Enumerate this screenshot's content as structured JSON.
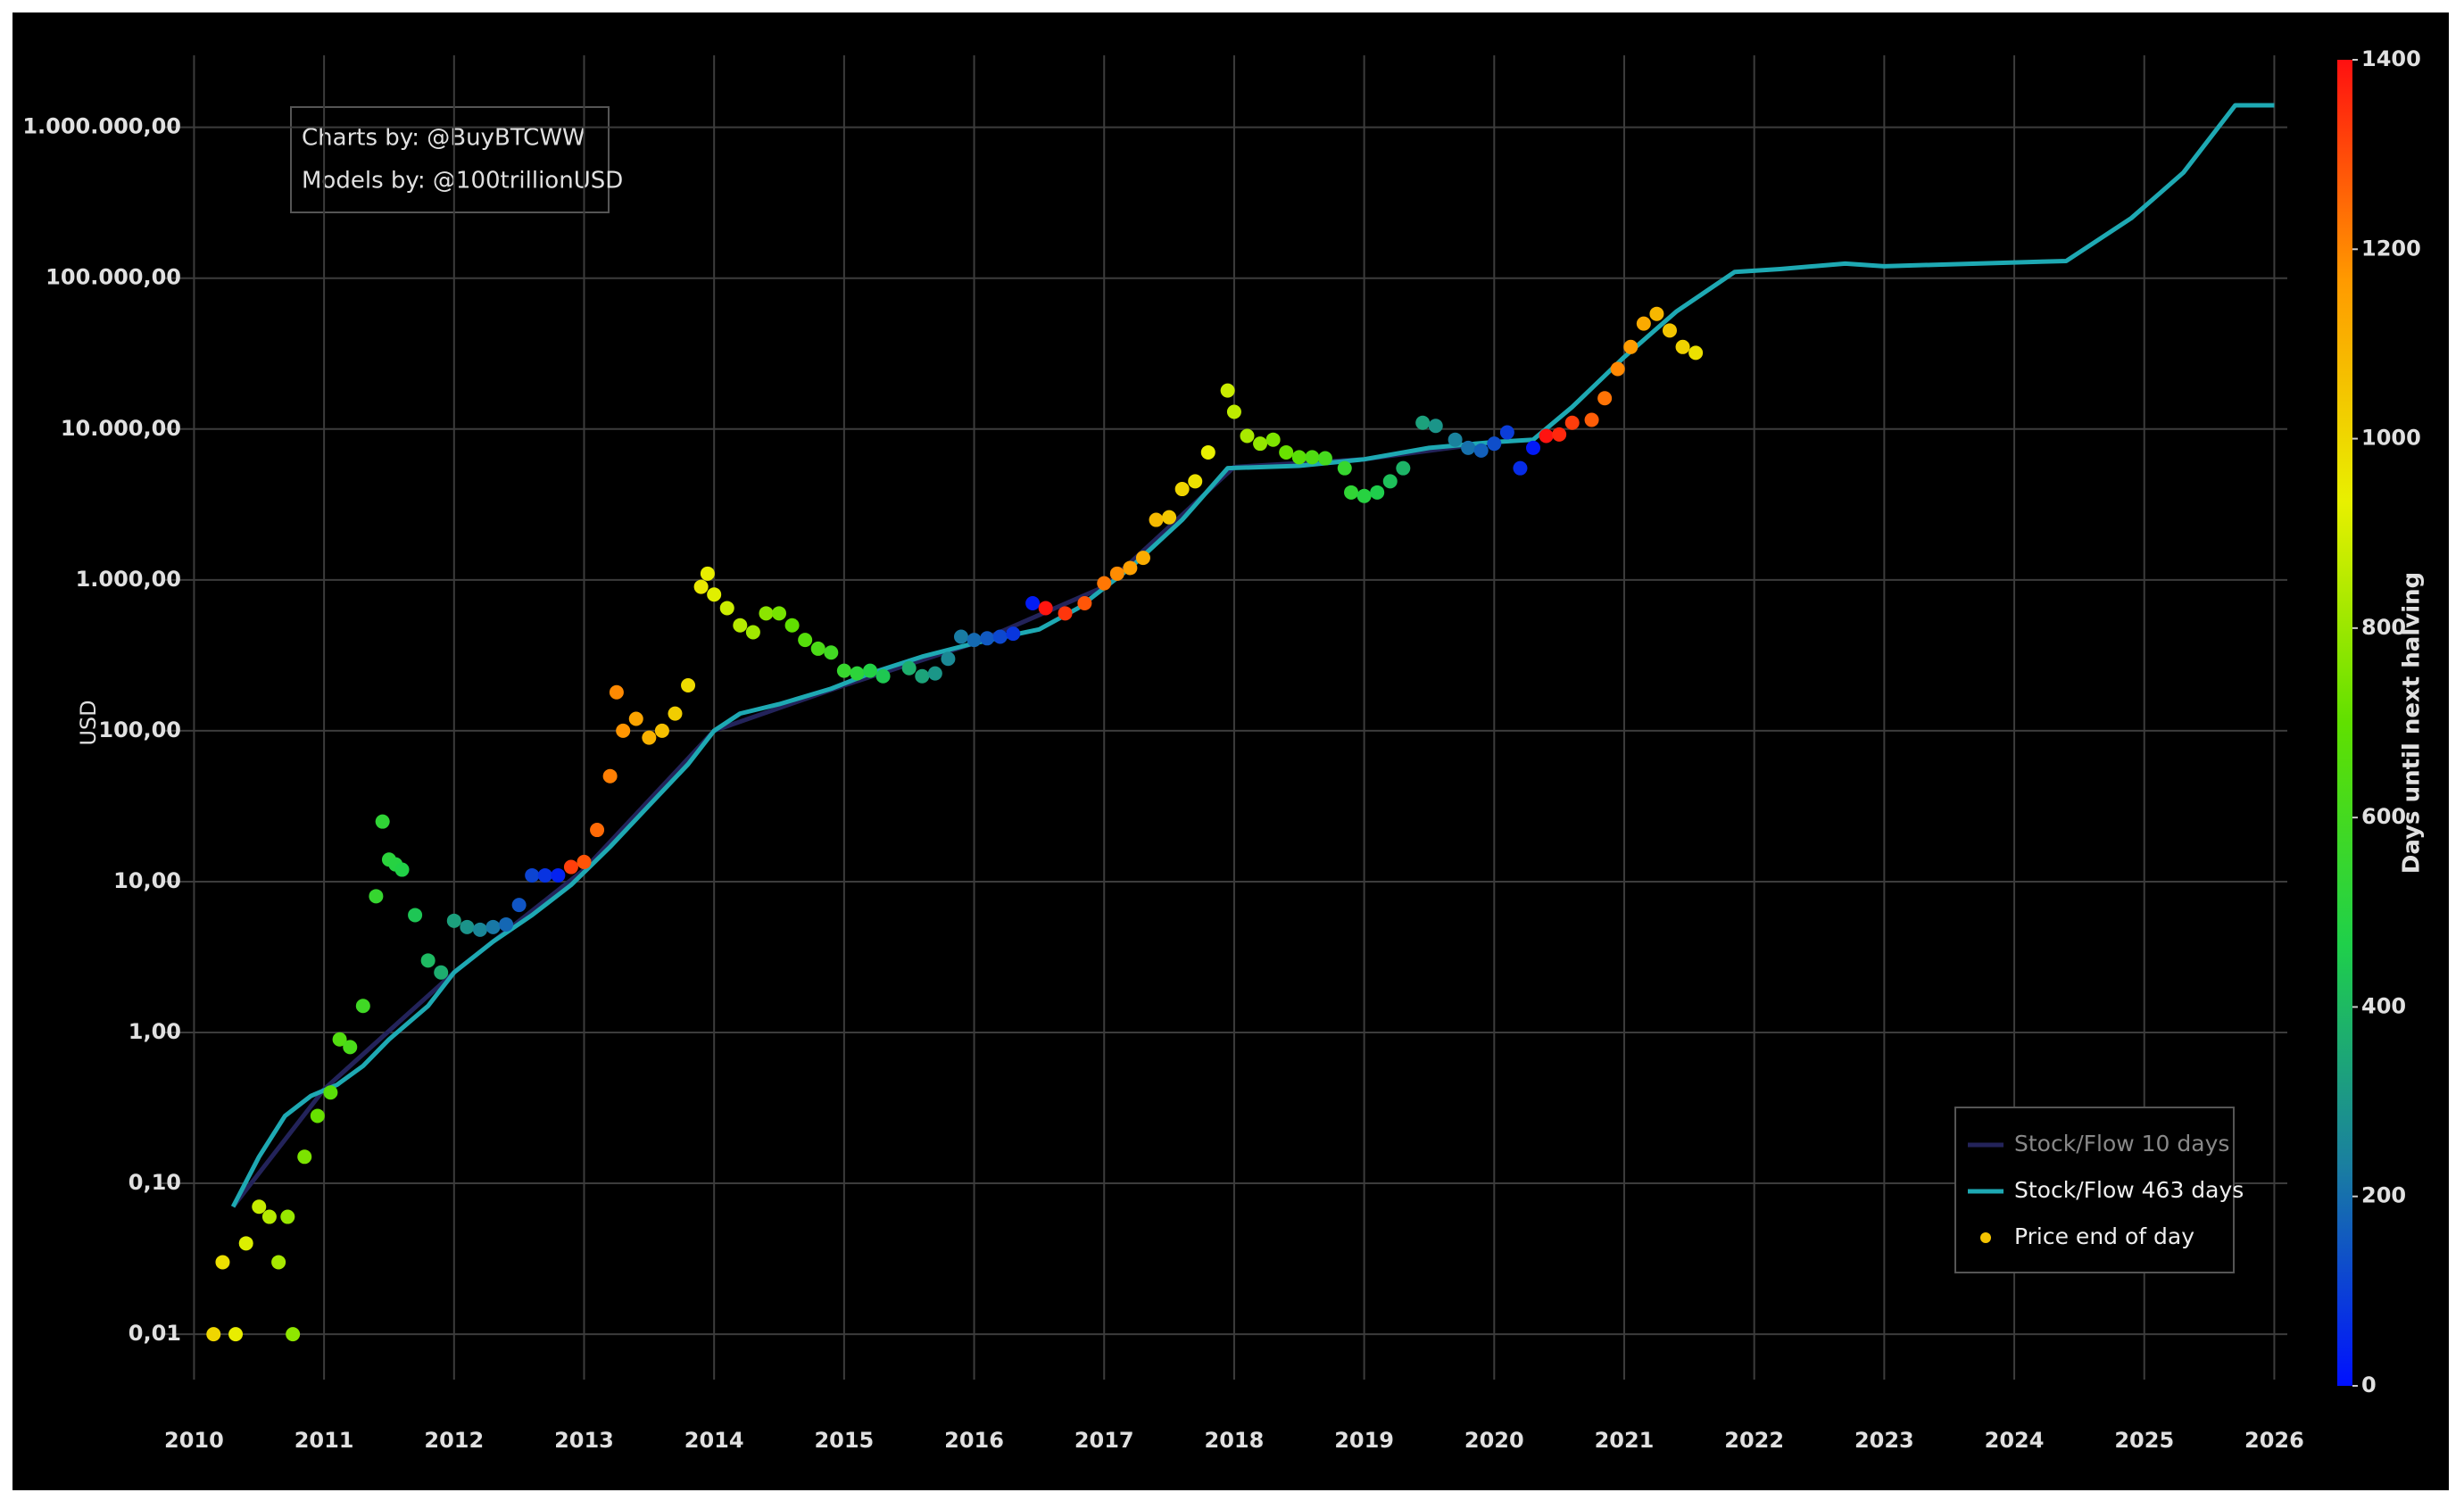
{
  "chart_data": {
    "type": "scatter",
    "annotations": [
      "Charts by: @BuyBTCWW",
      "Models by: @100trillionUSD"
    ],
    "ylabel": "USD",
    "log_y": true,
    "grid": true,
    "legend": "lower right",
    "xlim": [
      2009.75,
      2026.1
    ],
    "ylim": [
      0.005,
      3000000
    ],
    "xticks": [
      2010,
      2011,
      2012,
      2013,
      2014,
      2015,
      2016,
      2017,
      2018,
      2019,
      2020,
      2021,
      2022,
      2023,
      2024,
      2025,
      2026
    ],
    "yticks": [
      {
        "value": 0.01,
        "label": "0,01"
      },
      {
        "value": 0.1,
        "label": "0,10"
      },
      {
        "value": 1,
        "label": "1,00"
      },
      {
        "value": 10,
        "label": "10,00"
      },
      {
        "value": 100,
        "label": "100,00"
      },
      {
        "value": 1000,
        "label": "1.000,00"
      },
      {
        "value": 10000,
        "label": "10.000,00"
      },
      {
        "value": 100000,
        "label": "100.000,00"
      },
      {
        "value": 1000000,
        "label": "1.000.000,00"
      }
    ],
    "series": [
      {
        "name": "Stock/Flow 10 days",
        "type": "line",
        "color": "#23235a",
        "x": [
          2010.3,
          2011.0,
          2012.0,
          2013.0,
          2014.0,
          2015.0,
          2016.0,
          2017.0,
          2018.0,
          2019.0,
          2020.0
        ],
        "values": [
          0.07,
          0.42,
          2.5,
          12,
          100,
          200,
          380,
          900,
          5600,
          6300,
          8200
        ]
      },
      {
        "name": "Stock/Flow 463 days",
        "type": "line",
        "color": "#1ea9b3",
        "x": [
          2010.3,
          2010.5,
          2010.7,
          2010.9,
          2011.1,
          2011.3,
          2011.5,
          2011.8,
          2012.0,
          2012.3,
          2012.6,
          2012.9,
          2013.2,
          2013.5,
          2013.8,
          2014.0,
          2014.2,
          2014.5,
          2014.9,
          2015.2,
          2015.6,
          2016.0,
          2016.5,
          2016.8,
          2017.2,
          2017.6,
          2017.95,
          2018.5,
          2019.0,
          2019.5,
          2020.0,
          2020.3,
          2020.6,
          2021.0,
          2021.4,
          2021.85,
          2022.2,
          2022.7,
          2023.0,
          2024.4,
          2024.9,
          2025.3,
          2025.7,
          2026.0
        ],
        "values": [
          0.07,
          0.15,
          0.28,
          0.38,
          0.45,
          0.6,
          0.9,
          1.5,
          2.5,
          4.0,
          6.0,
          9.5,
          17,
          32,
          60,
          100,
          130,
          150,
          190,
          240,
          310,
          380,
          470,
          650,
          1200,
          2500,
          5500,
          5700,
          6300,
          7500,
          8200,
          8500,
          14000,
          30000,
          60000,
          110000,
          115000,
          125000,
          120000,
          130000,
          250000,
          500000,
          1400000,
          1400000
        ]
      },
      {
        "name": "Price end of day",
        "type": "scatter",
        "color": "#f5c400",
        "x": [
          2010.15,
          2010.22,
          2010.32,
          2010.4,
          2010.5,
          2010.58,
          2010.65,
          2010.72,
          2010.76,
          2010.85,
          2010.95,
          2011.05,
          2011.12,
          2011.2,
          2011.3,
          2011.4,
          2011.45,
          2011.5,
          2011.55,
          2011.6,
          2011.7,
          2011.8,
          2011.9,
          2012.0,
          2012.1,
          2012.2,
          2012.3,
          2012.4,
          2012.5,
          2012.6,
          2012.7,
          2012.8,
          2012.9,
          2013.0,
          2013.1,
          2013.2,
          2013.25,
          2013.3,
          2013.4,
          2013.5,
          2013.6,
          2013.7,
          2013.8,
          2013.9,
          2013.95,
          2014.0,
          2014.1,
          2014.2,
          2014.3,
          2014.4,
          2014.5,
          2014.6,
          2014.7,
          2014.8,
          2014.9,
          2015.0,
          2015.1,
          2015.2,
          2015.3,
          2015.5,
          2015.6,
          2015.7,
          2015.8,
          2015.9,
          2016.0,
          2016.1,
          2016.2,
          2016.3,
          2016.45,
          2016.55,
          2016.7,
          2016.85,
          2017.0,
          2017.1,
          2017.2,
          2017.3,
          2017.4,
          2017.5,
          2017.6,
          2017.7,
          2017.8,
          2017.95,
          2018.0,
          2018.1,
          2018.2,
          2018.3,
          2018.4,
          2018.5,
          2018.6,
          2018.7,
          2018.85,
          2018.9,
          2019.0,
          2019.1,
          2019.2,
          2019.3,
          2019.45,
          2019.55,
          2019.7,
          2019.8,
          2019.9,
          2020.0,
          2020.1,
          2020.2,
          2020.3,
          2020.4,
          2020.5,
          2020.6,
          2020.75,
          2020.85,
          2020.95,
          2021.05,
          2021.15,
          2021.25,
          2021.35,
          2021.45,
          2021.55
        ],
        "values": [
          0.01,
          0.03,
          0.01,
          0.04,
          0.07,
          0.06,
          0.03,
          0.06,
          0.01,
          0.15,
          0.28,
          0.4,
          0.9,
          0.8,
          1.5,
          8,
          25,
          14,
          13,
          12,
          6,
          3,
          2.5,
          5.5,
          5,
          4.8,
          5,
          5.2,
          7,
          11,
          11,
          11,
          12.5,
          13.5,
          22,
          50,
          180,
          100,
          120,
          90,
          100,
          130,
          200,
          900,
          1100,
          800,
          650,
          500,
          450,
          600,
          600,
          500,
          400,
          350,
          330,
          250,
          240,
          250,
          230,
          260,
          230,
          240,
          300,
          420,
          400,
          410,
          420,
          440,
          700,
          650,
          600,
          700,
          950,
          1100,
          1200,
          1400,
          2500,
          2600,
          4000,
          4500,
          7000,
          18000,
          13000,
          9000,
          8000,
          8500,
          7000,
          6500,
          6500,
          6400,
          5500,
          3800,
          3600,
          3800,
          4500,
          5500,
          11000,
          10500,
          8500,
          7500,
          7200,
          8000,
          9500,
          5500,
          7500,
          9000,
          9200,
          11000,
          11500,
          16000,
          25000,
          35000,
          50000,
          58000,
          45000,
          35000,
          32000
        ],
        "days": [
          1004,
          978,
          942,
          913,
          876,
          847,
          821,
          796,
          781,
          748,
          712,
          675,
          650,
          621,
          584,
          548,
          529,
          511,
          493,
          475,
          438,
          402,
          365,
          329,
          292,
          256,
          219,
          183,
          146,
          110,
          73,
          37,
          1321,
          1285,
          1248,
          1212,
          1194,
          1175,
          1139,
          1102,
          1066,
          1029,
          993,
          956,
          938,
          920,
          883,
          847,
          810,
          774,
          737,
          701,
          664,
          628,
          591,
          555,
          518,
          482,
          445,
          372,
          336,
          299,
          263,
          226,
          190,
          153,
          117,
          80,
          26,
          1391,
          1336,
          1281,
          1226,
          1190,
          1153,
          1117,
          1080,
          1044,
          1007,
          971,
          934,
          880,
          861,
          825,
          788,
          752,
          715,
          679,
          642,
          606,
          551,
          533,
          496,
          460,
          423,
          387,
          332,
          296,
          241,
          204,
          168,
          131,
          95,
          58,
          22,
          1395,
          1360,
          1324,
          1270,
          1233,
          1197,
          1160,
          1124,
          1087,
          1051,
          1014,
          978
        ]
      }
    ],
    "colorbar": {
      "label": "Days until next halving",
      "lim": [
        0,
        1400
      ],
      "ticks": [
        0,
        200,
        400,
        600,
        800,
        1000,
        1200,
        1400
      ],
      "colormap": [
        "#0010ff",
        "#1a7fa0",
        "#1fd04a",
        "#60e000",
        "#e8f000",
        "#ff9a00",
        "#ff1010"
      ]
    }
  }
}
